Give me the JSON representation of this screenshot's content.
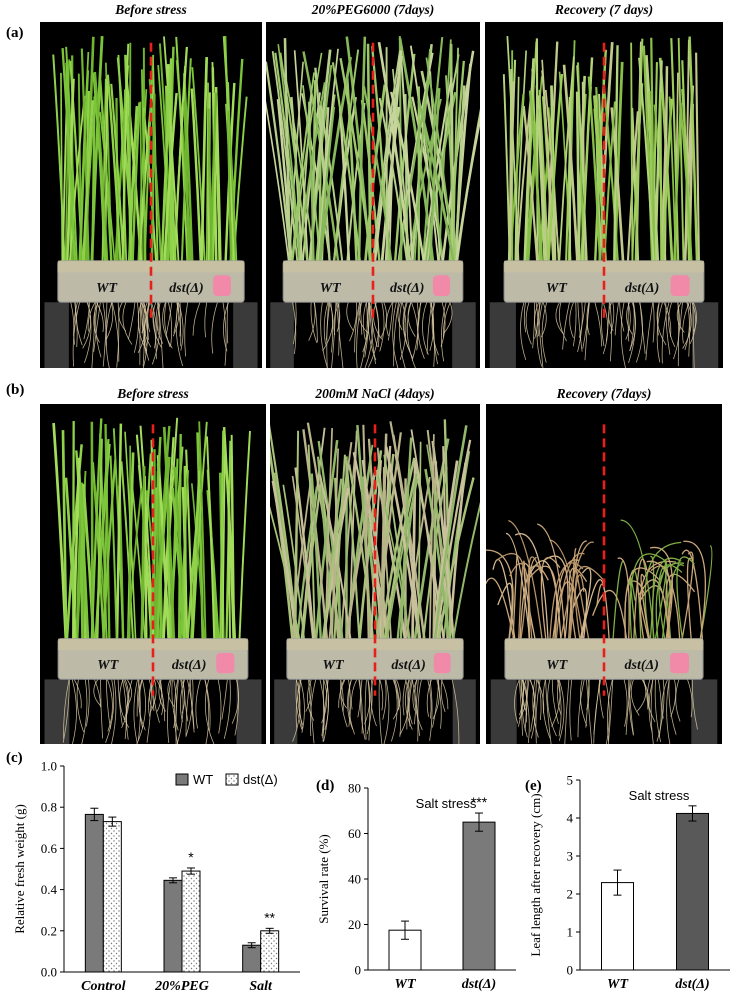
{
  "panels": {
    "a": {
      "letter": "(a)",
      "photos": [
        {
          "title": "Before stress",
          "wt_label": "WT",
          "mut_label": "dst(Δ)",
          "state": "healthy"
        },
        {
          "title": "20%PEG6000 (7days)",
          "wt_label": "WT",
          "mut_label": "dst(Δ)",
          "state": "drooping"
        },
        {
          "title": "Recovery (7 days)",
          "wt_label": "WT",
          "mut_label": "dst(Δ)",
          "state": "recovered"
        }
      ]
    },
    "b": {
      "letter": "(b)",
      "photos": [
        {
          "title": "Before stress",
          "wt_label": "WT",
          "mut_label": "dst(Δ)",
          "state": "healthy"
        },
        {
          "title": "200mM NaCl  (4days)",
          "wt_label": "WT",
          "mut_label": "dst(Δ)",
          "state": "salt"
        },
        {
          "title": "Recovery (7days)",
          "wt_label": "WT",
          "mut_label": "dst(Δ)",
          "state": "dead"
        }
      ]
    },
    "c": {
      "letter": "(c)"
    },
    "d": {
      "letter": "(d)"
    },
    "e": {
      "letter": "(e)"
    }
  },
  "colors": {
    "dark_bar": "#7a7a7a",
    "darker_bar": "#595959",
    "white_bar": "#ffffff",
    "red_dash": "#e8201c"
  },
  "chart_data": [
    {
      "type": "bar",
      "panel": "c",
      "categories": [
        "Control",
        "20%PEG",
        "Salt"
      ],
      "series": [
        {
          "name": "WT",
          "values": [
            0.765,
            0.445,
            0.13
          ],
          "errors": [
            0.03,
            0.012,
            0.012
          ]
        },
        {
          "name": "dst(Δ)",
          "values": [
            0.73,
            0.49,
            0.2
          ],
          "errors": [
            0.022,
            0.015,
            0.012
          ]
        }
      ],
      "significance": [
        "",
        "*",
        "**"
      ],
      "ylabel": "Relative fresh weight (g)",
      "ylim": [
        0,
        1.0
      ],
      "yticks": [
        "0.0",
        "0.2",
        "0.4",
        "0.6",
        "0.8",
        "1.0"
      ],
      "legend": "top-right",
      "grid": false
    },
    {
      "type": "bar",
      "panel": "d",
      "title": "Salt stress",
      "categories": [
        "WT",
        "dst(Δ)"
      ],
      "values": [
        17.5,
        65
      ],
      "errors": [
        4,
        4
      ],
      "significance": [
        "",
        "***"
      ],
      "ylabel": "Survival rate (%)",
      "ylim": [
        0,
        80
      ],
      "yticks": [
        "0",
        "20",
        "40",
        "60",
        "80"
      ],
      "grid": false
    },
    {
      "type": "bar",
      "panel": "e",
      "title": "Salt stress",
      "categories": [
        "WT",
        "dst(Δ)"
      ],
      "values": [
        2.3,
        4.12
      ],
      "errors": [
        0.33,
        0.2
      ],
      "ylabel": "Leaf length after recovery (cm)",
      "ylim": [
        0,
        5
      ],
      "yticks": [
        "0",
        "1",
        "2",
        "3",
        "4",
        "5"
      ],
      "grid": false
    }
  ]
}
